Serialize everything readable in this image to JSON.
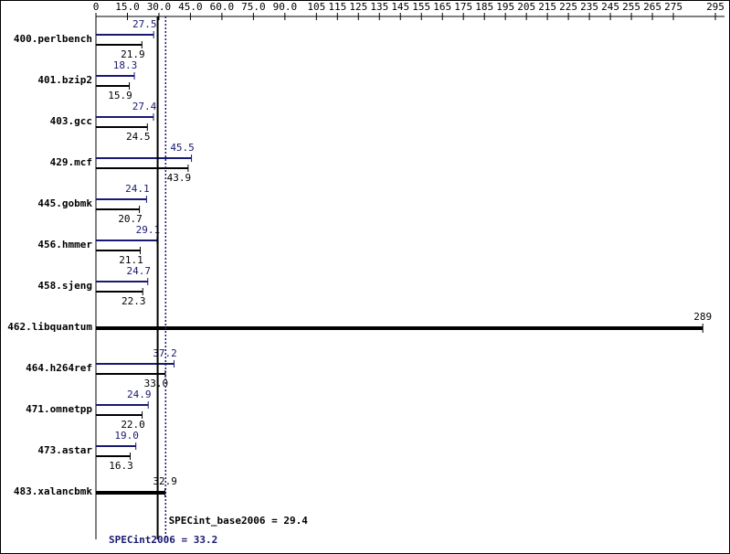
{
  "chart_data": {
    "type": "bar",
    "categories": [
      "400.perlbench",
      "401.bzip2",
      "403.gcc",
      "429.mcf",
      "445.gobmk",
      "456.hmmer",
      "458.sjeng",
      "462.libquantum",
      "464.h264ref",
      "471.omnetpp",
      "473.astar",
      "483.xalancbmk"
    ],
    "series": [
      {
        "color": "#191970",
        "values": [
          27.5,
          18.3,
          27.4,
          45.5,
          24.1,
          29.1,
          24.7,
          null,
          37.2,
          24.9,
          19.0,
          null
        ],
        "value_labels": [
          "27.5",
          "18.3",
          "27.4",
          "45.5",
          "24.1",
          "29.1",
          "24.7",
          null,
          "37.2",
          "24.9",
          "19.0",
          null
        ]
      },
      {
        "color": "#000000",
        "values": [
          21.9,
          15.9,
          24.5,
          43.9,
          20.7,
          21.1,
          22.3,
          289,
          33.0,
          22.0,
          16.3,
          32.9
        ],
        "value_labels": [
          "21.9",
          "15.9",
          "24.5",
          "43.9",
          "20.7",
          "21.1",
          "22.3",
          "289",
          "33.0",
          "22.0",
          "16.3",
          "32.9"
        ]
      }
    ],
    "xlim": [
      0,
      295
    ],
    "xticks": [
      0,
      {
        "value": 15,
        "label": "15.0"
      },
      {
        "value": 30,
        "label": "30.0"
      },
      {
        "value": 45,
        "label": "45.0"
      },
      {
        "value": 60,
        "label": "60.0"
      },
      {
        "value": 75,
        "label": "75.0"
      },
      {
        "value": 90,
        "label": "90.0"
      },
      105,
      115,
      125,
      135,
      145,
      155,
      165,
      175,
      185,
      195,
      205,
      215,
      225,
      235,
      245,
      255,
      265,
      275,
      295
    ],
    "reference_lines": [
      {
        "value": 29.4,
        "label": "SPECint_base2006 = 29.4",
        "color": "#000000",
        "style": "solid"
      },
      {
        "value": 33.2,
        "label": "SPECint2006 = 33.2",
        "color": "#191970",
        "style": "dotted"
      }
    ]
  }
}
